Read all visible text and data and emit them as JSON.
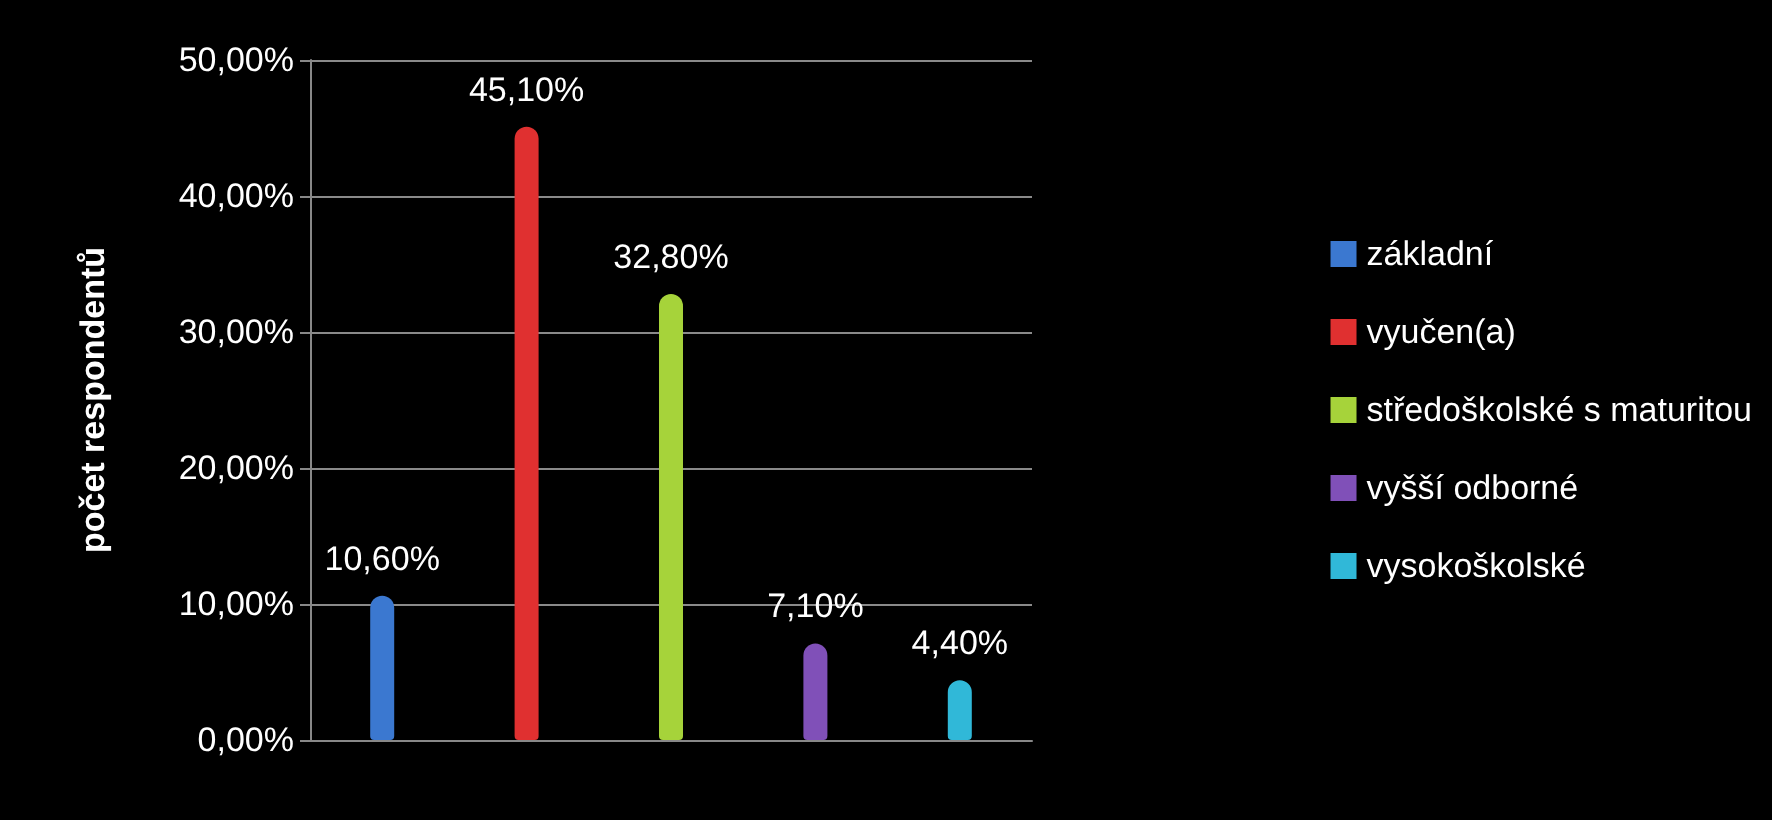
{
  "chart_data": {
    "type": "bar",
    "ylabel": "počet respondentů",
    "categories": [
      null,
      null,
      null,
      null,
      null
    ],
    "series": [
      {
        "name": "základní",
        "color": "#3b78d0",
        "values": [
          10.6,
          null,
          null,
          null,
          null
        ],
        "value_labels": [
          "10,60%",
          null,
          null,
          null,
          null
        ]
      },
      {
        "name": "vyučen(a)",
        "color": "#e03030",
        "values": [
          null,
          45.1,
          null,
          null,
          null
        ],
        "value_labels": [
          null,
          "45,10%",
          null,
          null,
          null
        ]
      },
      {
        "name": "středoškolské s maturitou",
        "color": "#a6d33a",
        "values": [
          null,
          null,
          32.8,
          null,
          null
        ],
        "value_labels": [
          null,
          null,
          "32,80%",
          null,
          null
        ]
      },
      {
        "name": "vyšší odborné",
        "color": "#8050b8",
        "values": [
          null,
          null,
          null,
          7.1,
          null
        ],
        "value_labels": [
          null,
          null,
          null,
          "7,10%",
          null
        ]
      },
      {
        "name": "vysokoškolské",
        "color": "#30b8d8",
        "values": [
          null,
          null,
          null,
          null,
          4.4
        ],
        "value_labels": [
          null,
          null,
          null,
          null,
          "4,40%"
        ]
      }
    ],
    "ylim": [
      0,
      50
    ],
    "yticks": [
      {
        "value": 0,
        "label": "0,00%"
      },
      {
        "value": 10,
        "label": "10,00%"
      },
      {
        "value": 20,
        "label": "20,00%"
      },
      {
        "value": 30,
        "label": "30,00%"
      },
      {
        "value": 40,
        "label": "40,00%"
      },
      {
        "value": 50,
        "label": "50,00%"
      }
    ],
    "grid": "y",
    "legend": "right"
  }
}
